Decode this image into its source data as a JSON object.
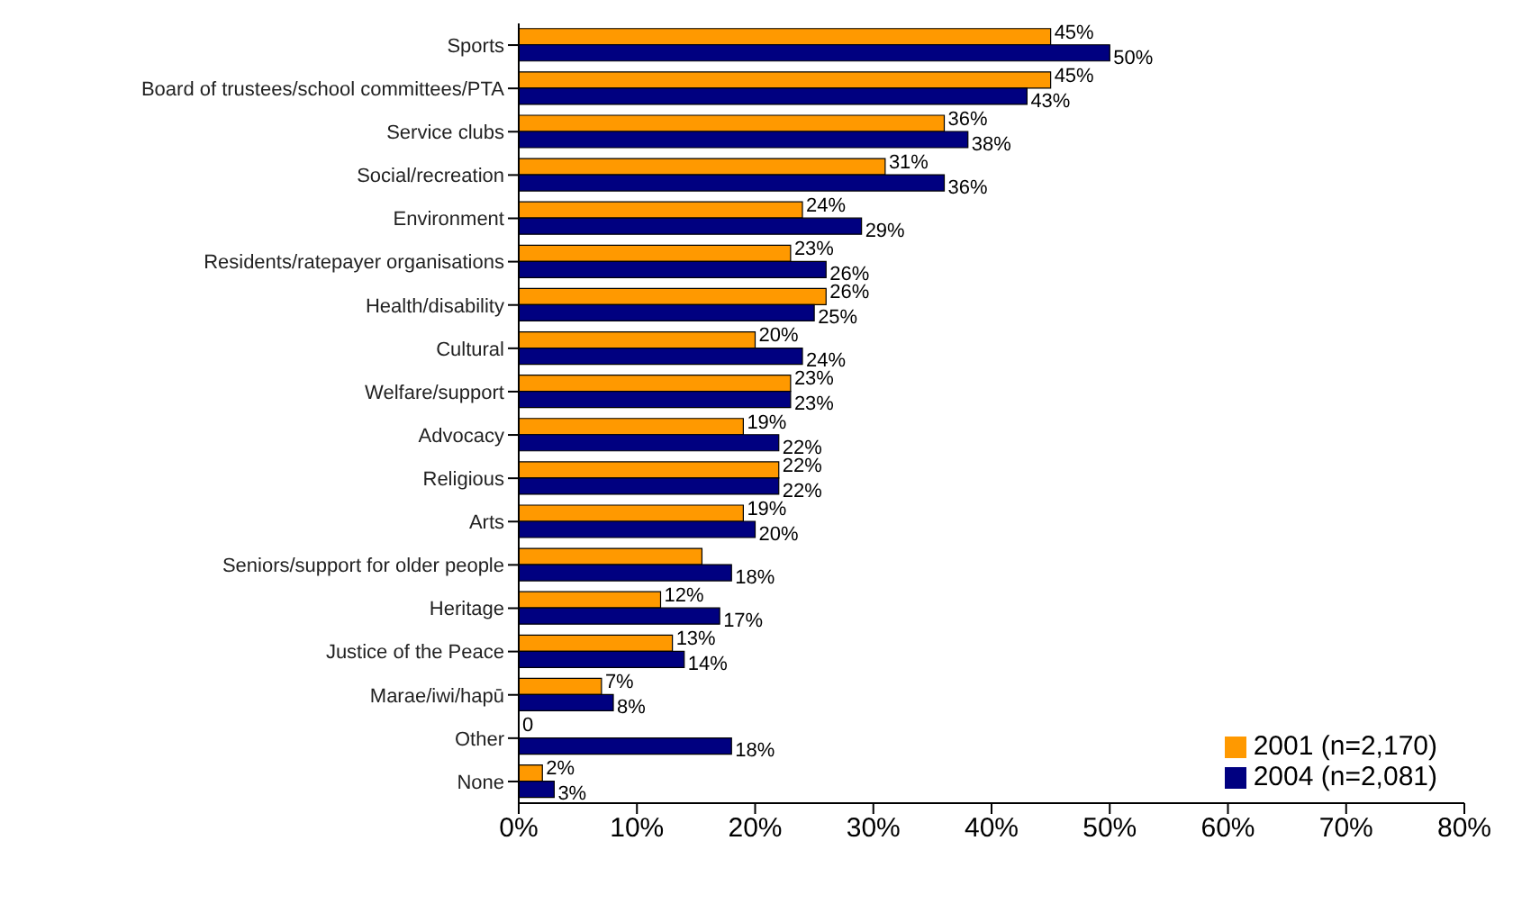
{
  "chart_data": {
    "type": "bar",
    "orientation": "horizontal",
    "categories": [
      "Sports",
      "Board of trustees/school committees/PTA",
      "Service clubs",
      "Social/recreation",
      "Environment",
      "Residents/ratepayer organisations",
      "Health/disability",
      "Cultural",
      "Welfare/support",
      "Advocacy",
      "Religious",
      "Arts",
      "Seniors/support for older people",
      "Heritage",
      "Justice of the Peace",
      "Marae/iwi/hapū",
      "Other",
      "None"
    ],
    "series": [
      {
        "name": "2001 (n=2,170)",
        "color": "#ff9900",
        "values": [
          45,
          45,
          36,
          31,
          24,
          23,
          26,
          20,
          23,
          19,
          22,
          19,
          15.5,
          12,
          13,
          7,
          0,
          2
        ],
        "value_labels": [
          "45%",
          "45%",
          "36%",
          "31%",
          "24%",
          "23%",
          "26%",
          "20%",
          "23%",
          "19%",
          "22%",
          "19%",
          null,
          "12%",
          "13%",
          "7%",
          "0",
          "2%"
        ]
      },
      {
        "name": "2004 (n=2,081)",
        "color": "#000080",
        "values": [
          50,
          43,
          38,
          36,
          29,
          26,
          25,
          24,
          23,
          22,
          22,
          20,
          18,
          17,
          14,
          8,
          18,
          3
        ],
        "value_labels": [
          "50%",
          "43%",
          "38%",
          "36%",
          "29%",
          "26%",
          "25%",
          "24%",
          "23%",
          "22%",
          "22%",
          "20%",
          "18%",
          "17%",
          "14%",
          "8%",
          "18%",
          "3%"
        ]
      }
    ],
    "xlim": [
      0,
      80
    ],
    "xticks": [
      {
        "value": 0,
        "label": "0%"
      },
      {
        "value": 10,
        "label": "10%"
      },
      {
        "value": 20,
        "label": "20%"
      },
      {
        "value": 30,
        "label": "30%"
      },
      {
        "value": 40,
        "label": "40%"
      },
      {
        "value": 50,
        "label": "50%"
      },
      {
        "value": 60,
        "label": "60%"
      },
      {
        "value": 70,
        "label": "70%"
      },
      {
        "value": 80,
        "label": "80%"
      }
    ],
    "grid": false,
    "legend": "bottom right"
  }
}
